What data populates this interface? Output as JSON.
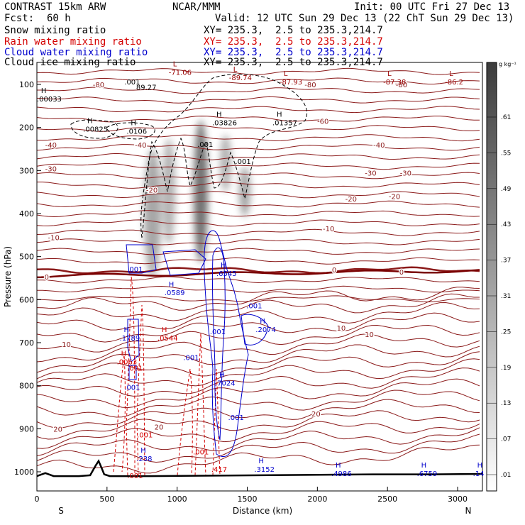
{
  "header": {
    "model": "CONTRAST 15km ARW",
    "org": "NCAR/MMM",
    "init": "Init: 00 UTC Fri 27 Dec 13",
    "fcst_label": "Fcst:",
    "fcst_value": "60 h",
    "valid": "Valid: 12 UTC Sun 29 Dec 13 (22 ChT Sun 29 Dec 13)"
  },
  "fields": [
    {
      "name": "Snow mixing ratio",
      "xy": "XY= 235.3,  2.5 to 235.3,214.7",
      "color": "#000000"
    },
    {
      "name": "Rain water mixing ratio",
      "xy": "XY= 235.3,  2.5 to 235.3,214.7",
      "color": "#d40000"
    },
    {
      "name": "Cloud water mixing ratio",
      "xy": "XY= 235.3,  2.5 to 235.3,214.7",
      "color": "#0000cc"
    },
    {
      "name": "Cloud ice mixing ratio",
      "xy": "XY= 235.3,  2.5 to 235.3,214.7",
      "color": "#000000"
    }
  ],
  "colorbar": {
    "unit": "g kg⁻¹",
    "levels": [
      ".01",
      ".07",
      ".13",
      ".19",
      ".25",
      ".31",
      ".37",
      ".43",
      ".49",
      ".55",
      ".61"
    ]
  },
  "chart_data": {
    "type": "heatmap",
    "xlabel": "Distance (km)",
    "ylabel": "Pressure (hPa)",
    "xlim": [
      0,
      3200
    ],
    "ylim": [
      1050,
      50
    ],
    "x_ticks": [
      "0",
      "500",
      "1000",
      "1500",
      "2000",
      "2500",
      "3000"
    ],
    "y_ticks": [
      "100",
      "200",
      "300",
      "400",
      "500",
      "600",
      "700",
      "800",
      "900",
      "1000"
    ],
    "x_endpoints": {
      "left": "S",
      "right": "N"
    },
    "isotherm_labels": [
      {
        "text": "-80",
        "x": 440,
        "p": 100
      },
      {
        "text": "-80",
        "x": 2600,
        "p": 100
      },
      {
        "text": "-80",
        "x": 1950,
        "p": 100
      },
      {
        "text": "-60",
        "x": 2040,
        "p": 185
      },
      {
        "text": "-40",
        "x": 100,
        "p": 240
      },
      {
        "text": "-40",
        "x": 740,
        "p": 240
      },
      {
        "text": "-40",
        "x": 2440,
        "p": 240
      },
      {
        "text": "-30",
        "x": 100,
        "p": 295
      },
      {
        "text": "-30",
        "x": 2380,
        "p": 305
      },
      {
        "text": "-30",
        "x": 2630,
        "p": 305
      },
      {
        "text": "-20",
        "x": 820,
        "p": 345
      },
      {
        "text": "-20",
        "x": 2240,
        "p": 365
      },
      {
        "text": "-20",
        "x": 2550,
        "p": 360
      },
      {
        "text": "-10",
        "x": 120,
        "p": 455
      },
      {
        "text": "-10",
        "x": 2080,
        "p": 435
      },
      {
        "text": "0",
        "x": 70,
        "p": 547
      },
      {
        "text": "0",
        "x": 2120,
        "p": 530
      },
      {
        "text": "0",
        "x": 2600,
        "p": 535
      },
      {
        "text": "10",
        "x": 210,
        "p": 703
      },
      {
        "text": "10",
        "x": 2170,
        "p": 665
      },
      {
        "text": "10",
        "x": 2370,
        "p": 680
      },
      {
        "text": "20",
        "x": 150,
        "p": 900
      },
      {
        "text": "20",
        "x": 870,
        "p": 895
      },
      {
        "text": "20",
        "x": 1990,
        "p": 865
      }
    ],
    "min_max_labels": [
      {
        "kind": "L",
        "value": "-71.06",
        "x": 970,
        "p": 68,
        "color": "#990000"
      },
      {
        "kind": "L",
        "value": "-89.74",
        "x": 1400,
        "p": 80,
        "color": "#990000"
      },
      {
        "kind": "L",
        "value": "-87.93",
        "x": 1760,
        "p": 90,
        "color": "#990000"
      },
      {
        "kind": "L",
        "value": "-87.38",
        "x": 2500,
        "p": 90,
        "color": "#990000"
      },
      {
        "kind": "L",
        "value": "-86.2",
        "x": 2940,
        "p": 90,
        "color": "#990000"
      },
      {
        "kind": "H",
        "value": ".00033",
        "x": 30,
        "p": 130,
        "color": "#000000"
      },
      {
        "kind": "H",
        "value": ".00825",
        "x": 360,
        "p": 200,
        "color": "#000000"
      },
      {
        "kind": "H",
        "value": ".0106",
        "x": 670,
        "p": 205,
        "color": "#000000"
      },
      {
        "kind": "H",
        "value": ".03826",
        "x": 1280,
        "p": 185,
        "color": "#000000"
      },
      {
        "kind": "H",
        "value": ".01357",
        "x": 1710,
        "p": 185,
        "color": "#000000"
      },
      {
        "kind": "H",
        "value": ".6545",
        "x": 1310,
        "p": 535,
        "color": "#0000cc"
      },
      {
        "kind": "H",
        "value": ".0589",
        "x": 940,
        "p": 580,
        "color": "#0000cc"
      },
      {
        "kind": "H",
        "value": ".1789",
        "x": 620,
        "p": 685,
        "color": "#0000cc"
      },
      {
        "kind": "H",
        "value": ".0544",
        "x": 890,
        "p": 685,
        "color": "#d40000"
      },
      {
        "kind": "H",
        "value": ".2074",
        "x": 1590,
        "p": 665,
        "color": "#0000cc"
      },
      {
        "kind": "H",
        "value": ".0063",
        "x": 600,
        "p": 740,
        "color": "#d40000"
      },
      {
        "kind": "H",
        "value": ".7024",
        "x": 1300,
        "p": 790,
        "color": "#0000cc"
      },
      {
        "kind": "H",
        "value": ".238",
        "x": 740,
        "p": 965,
        "color": "#0000cc"
      },
      {
        "kind": "H",
        "value": ".3152",
        "x": 1580,
        "p": 990,
        "color": "#0000cc"
      },
      {
        "kind": "H",
        "value": ".4986",
        "x": 2130,
        "p": 1000,
        "color": "#0000cc"
      },
      {
        "kind": "H",
        "value": ".6759",
        "x": 2740,
        "p": 1000,
        "color": "#0000cc"
      },
      {
        "kind": "H",
        "value": ".14",
        "x": 3140,
        "p": 1000,
        "color": "#0000cc"
      }
    ],
    "small_labels": [
      {
        "text": ".001",
        "x": 680,
        "p": 100,
        "color": "#000000"
      },
      {
        "text": "89.27",
        "x": 780,
        "p": 112,
        "color": "#000000"
      },
      {
        "text": ".001",
        "x": 1200,
        "p": 245,
        "color": "#000000"
      },
      {
        "text": ".001",
        "x": 1470,
        "p": 285,
        "color": "#000000"
      },
      {
        "text": ".001",
        "x": 700,
        "p": 535,
        "color": "#0000cc"
      },
      {
        "text": ".001",
        "x": 1290,
        "p": 680,
        "color": "#0000cc"
      },
      {
        "text": ".001",
        "x": 1550,
        "p": 620,
        "color": "#0000cc"
      },
      {
        "text": ".001",
        "x": 700,
        "p": 765,
        "color": "#d40000"
      },
      {
        "text": ".001",
        "x": 680,
        "p": 810,
        "color": "#0000cc"
      },
      {
        "text": ".001",
        "x": 1100,
        "p": 740,
        "color": "#0000cc"
      },
      {
        "text": ".001",
        "x": 1420,
        "p": 880,
        "color": "#0000cc"
      },
      {
        "text": ".001",
        "x": 770,
        "p": 920,
        "color": "#d40000"
      },
      {
        "text": ".001",
        "x": 1170,
        "p": 960,
        "color": "#d40000"
      },
      {
        "text": ".001",
        "x": 700,
        "p": 1015,
        "color": "#d40000"
      },
      {
        "text": ".417",
        "x": 1300,
        "p": 1000,
        "color": "#d40000"
      }
    ],
    "terrain": {
      "x": [
        0,
        60,
        120,
        200,
        300,
        380,
        420,
        440,
        460,
        480,
        520,
        600,
        800,
        1200,
        1600,
        2000,
        2400,
        2800,
        3200
      ],
      "p": [
        1010,
        1003,
        1010,
        1010,
        1010,
        1008,
        985,
        975,
        990,
        1006,
        1010,
        1010,
        1010,
        1009,
        1008,
        1007,
        1006,
        1006,
        1005
      ]
    }
  }
}
